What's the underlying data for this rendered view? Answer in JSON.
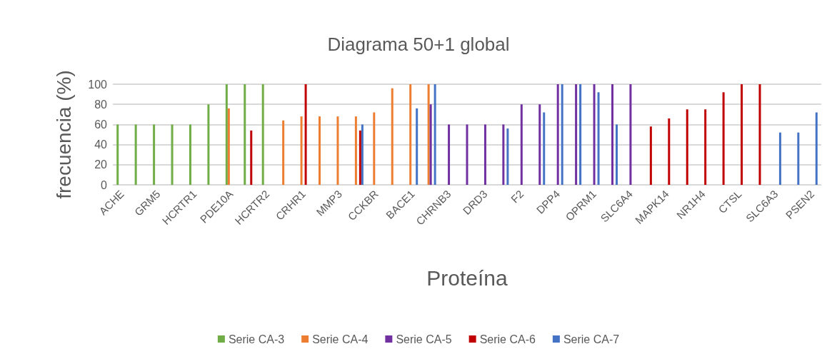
{
  "chart_data": {
    "type": "bar",
    "title": "Diagrama 50+1 global",
    "xlabel": "Proteína",
    "ylabel": "frecuencia (%)",
    "categories": [
      "ACHE",
      null,
      "GRM5",
      null,
      "HCRTR1",
      null,
      "PDE10A",
      null,
      "HCRTR2",
      null,
      "CRHR1",
      null,
      "MMP3",
      null,
      "CCKBR",
      null,
      "BACE1",
      null,
      "CHRNB3",
      null,
      "DRD3",
      null,
      "F2",
      null,
      "DPP4",
      null,
      "OPRM1",
      null,
      "SLC6A4",
      null,
      "MAPK14",
      null,
      "NR1H4",
      null,
      "CTSL",
      null,
      "SLC6A3",
      null,
      "PSEN2"
    ],
    "series": [
      {
        "name": "Serie CA-3",
        "color": "#70ad47",
        "values": [
          60,
          60,
          60,
          60,
          60,
          80,
          100,
          100,
          100,
          null,
          null,
          null,
          null,
          null,
          null,
          null,
          null,
          null,
          null,
          null,
          null,
          null,
          null,
          null,
          null,
          null,
          null,
          null,
          null,
          null,
          null,
          null,
          null,
          null,
          null,
          null,
          null,
          null,
          null
        ]
      },
      {
        "name": "Serie CA-4",
        "color": "#ed7d31",
        "values": [
          null,
          null,
          null,
          null,
          null,
          null,
          76,
          null,
          null,
          64,
          68,
          68,
          68,
          68,
          72,
          96,
          100,
          100,
          null,
          null,
          null,
          null,
          null,
          null,
          null,
          null,
          null,
          null,
          null,
          null,
          null,
          null,
          null,
          null,
          null,
          null,
          null,
          null,
          null
        ]
      },
      {
        "name": "Serie CA-5",
        "color": "#7030a0",
        "values": [
          null,
          null,
          null,
          null,
          null,
          null,
          null,
          null,
          null,
          null,
          null,
          null,
          null,
          null,
          null,
          null,
          null,
          80,
          60,
          60,
          60,
          60,
          80,
          80,
          100,
          100,
          100,
          100,
          100,
          null,
          null,
          null,
          null,
          null,
          null,
          null,
          null,
          null,
          null
        ]
      },
      {
        "name": "Serie CA-6",
        "color": "#c00000",
        "values": [
          null,
          null,
          null,
          null,
          null,
          null,
          null,
          54,
          null,
          null,
          100,
          null,
          null,
          54,
          null,
          null,
          null,
          null,
          null,
          null,
          null,
          null,
          null,
          null,
          null,
          null,
          null,
          null,
          null,
          58,
          66,
          75,
          75,
          92,
          100,
          100,
          null,
          null,
          null
        ]
      },
      {
        "name": "Serie CA-7",
        "color": "#4472c4",
        "values": [
          null,
          null,
          null,
          null,
          null,
          null,
          null,
          null,
          null,
          null,
          null,
          null,
          null,
          60,
          null,
          null,
          76,
          100,
          null,
          null,
          null,
          56,
          null,
          72,
          100,
          100,
          92,
          60,
          null,
          null,
          null,
          null,
          null,
          null,
          null,
          null,
          52,
          52,
          72
        ]
      }
    ],
    "ylim": [
      0,
      100
    ],
    "yticks": [
      0,
      20,
      40,
      60,
      80,
      100
    ],
    "grid": "y",
    "legend": "bottom"
  }
}
